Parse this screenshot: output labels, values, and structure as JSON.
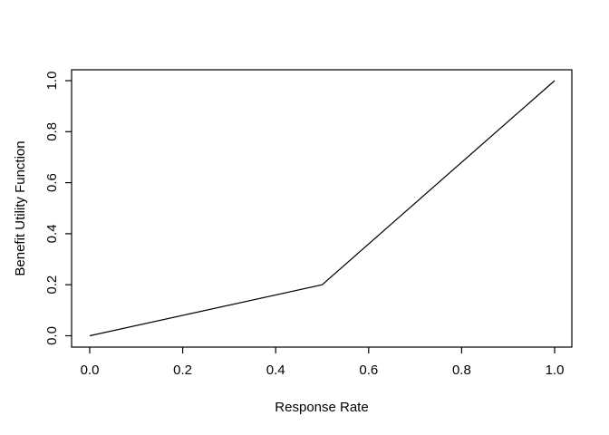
{
  "chart_data": {
    "type": "line",
    "title": "",
    "xlabel": "Response Rate",
    "ylabel": "Benefit Utility Function",
    "x": [
      0.0,
      0.5,
      1.0
    ],
    "y": [
      0.0,
      0.2,
      1.0
    ],
    "xlim": [
      0.0,
      1.0
    ],
    "ylim": [
      0.0,
      1.0
    ],
    "x_ticks": [
      0.0,
      0.2,
      0.4,
      0.6,
      0.8,
      1.0
    ],
    "x_tick_labels": [
      "0.0",
      "0.2",
      "0.4",
      "0.6",
      "0.8",
      "1.0"
    ],
    "y_ticks": [
      0.0,
      0.2,
      0.4,
      0.6,
      0.8,
      1.0
    ],
    "y_tick_labels": [
      "0.0",
      "0.2",
      "0.4",
      "0.6",
      "0.8",
      "1.0"
    ],
    "grid": false,
    "legend": null,
    "line_color": "#000000",
    "box_color": "#000000",
    "background_color": "#ffffff"
  }
}
